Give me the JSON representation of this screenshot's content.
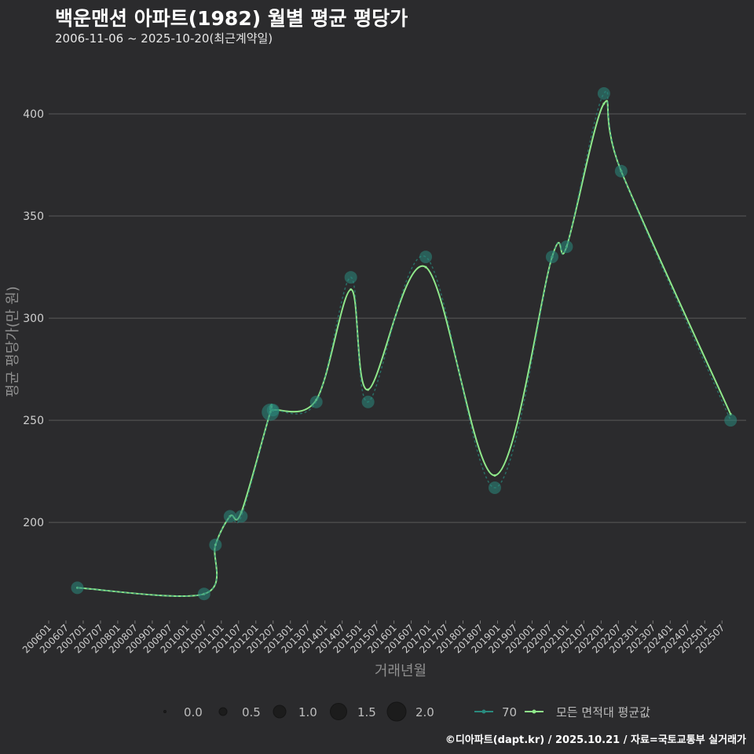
{
  "title": "백운맨션 아파트(1982) 월별 평균 평당가",
  "subtitle": "2006-11-06 ~ 2025-10-20(최근계약일)",
  "caption": "©디아파트(dapt.kr) / 2025.10.21 / 자료=국토교통부 실거래가",
  "colors": {
    "background": "#2b2b2d",
    "series70": "#2a8a7e",
    "avgLine": "#8fe88a",
    "grid": "#5a5a5a"
  },
  "chart_data": {
    "type": "line",
    "title": "백운맨션 아파트(1982) 월별 평균 평당가",
    "xlabel": "거래년월",
    "ylabel": "평균 평당가(만 원)",
    "ylim": [
      152,
      425
    ],
    "yticks": [
      200,
      250,
      300,
      350,
      400
    ],
    "x_ticks": [
      "200601",
      "200607",
      "200701",
      "200707",
      "200801",
      "200807",
      "200901",
      "200907",
      "201001",
      "201007",
      "201101",
      "201107",
      "201201",
      "201207",
      "201301",
      "201307",
      "201401",
      "201407",
      "201501",
      "201507",
      "201601",
      "201607",
      "201701",
      "201707",
      "201801",
      "201807",
      "201901",
      "201907",
      "202001",
      "202007",
      "202101",
      "202107",
      "202201",
      "202207",
      "202301",
      "202307",
      "202401",
      "202407",
      "202501",
      "202507"
    ],
    "series": [
      {
        "name": "70",
        "points": [
          {
            "t": 2006.83,
            "y": 168,
            "n": 1
          },
          {
            "t": 2010.5,
            "y": 165,
            "n": 1
          },
          {
            "t": 2010.83,
            "y": 189,
            "n": 1
          },
          {
            "t": 2011.25,
            "y": 203,
            "n": 1
          },
          {
            "t": 2011.58,
            "y": 203,
            "n": 1
          },
          {
            "t": 2012.42,
            "y": 254,
            "n": 2
          },
          {
            "t": 2012.5,
            "y": 255,
            "n": 1
          },
          {
            "t": 2013.75,
            "y": 259,
            "n": 1
          },
          {
            "t": 2014.75,
            "y": 320,
            "n": 1
          },
          {
            "t": 2015.25,
            "y": 259,
            "n": 1
          },
          {
            "t": 2016.92,
            "y": 330,
            "n": 1
          },
          {
            "t": 2018.92,
            "y": 217,
            "n": 1
          },
          {
            "t": 2020.58,
            "y": 330,
            "n": 1
          },
          {
            "t": 2021.0,
            "y": 335,
            "n": 1
          },
          {
            "t": 2022.08,
            "y": 410,
            "n": 1
          },
          {
            "t": 2022.58,
            "y": 372,
            "n": 1
          },
          {
            "t": 2025.75,
            "y": 250,
            "n": 1
          }
        ]
      },
      {
        "name": "모든 면적대 평균값",
        "points": [
          {
            "t": 2006.83,
            "y": 168
          },
          {
            "t": 2010.5,
            "y": 165
          },
          {
            "t": 2010.83,
            "y": 189
          },
          {
            "t": 2011.25,
            "y": 203
          },
          {
            "t": 2011.58,
            "y": 205
          },
          {
            "t": 2012.42,
            "y": 254
          },
          {
            "t": 2012.5,
            "y": 255
          },
          {
            "t": 2013.75,
            "y": 260
          },
          {
            "t": 2014.75,
            "y": 314
          },
          {
            "t": 2015.25,
            "y": 265
          },
          {
            "t": 2016.92,
            "y": 325
          },
          {
            "t": 2018.92,
            "y": 223
          },
          {
            "t": 2020.58,
            "y": 330
          },
          {
            "t": 2021.0,
            "y": 335
          },
          {
            "t": 2022.08,
            "y": 405
          },
          {
            "t": 2022.58,
            "y": 372
          },
          {
            "t": 2025.75,
            "y": 253
          }
        ]
      }
    ],
    "size_legend": [
      "0.0",
      "0.5",
      "1.0",
      "1.5",
      "2.0"
    ]
  }
}
